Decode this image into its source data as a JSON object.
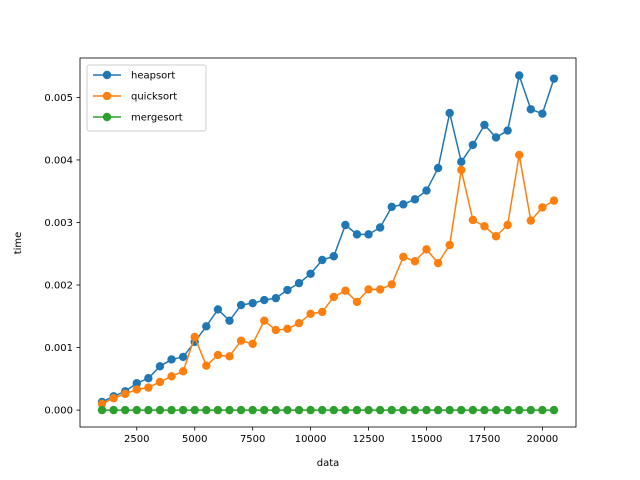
{
  "chart_data": {
    "type": "line",
    "title": "",
    "xlabel": "data",
    "ylabel": "time",
    "xlim": [
      50,
      21450
    ],
    "ylim": [
      -0.00027,
      0.00563
    ],
    "xticks": [
      2500,
      5000,
      7500,
      10000,
      12500,
      15000,
      17500,
      20000
    ],
    "yticks": [
      0.0,
      0.001,
      0.002,
      0.003,
      0.004,
      0.005
    ],
    "ytick_labels": [
      "0.000",
      "0.001",
      "0.002",
      "0.003",
      "0.004",
      "0.005"
    ],
    "grid": false,
    "legend_position": "top-left",
    "x": [
      1000,
      1500,
      2000,
      2500,
      3000,
      3500,
      4000,
      4500,
      5000,
      5500,
      6000,
      6500,
      7000,
      7500,
      8000,
      8500,
      9000,
      9500,
      10000,
      10500,
      11000,
      11500,
      12000,
      12500,
      13000,
      13500,
      14000,
      14500,
      15000,
      15500,
      16000,
      16500,
      17000,
      17500,
      18000,
      18500,
      19000,
      19500,
      20000,
      20500
    ],
    "series": [
      {
        "name": "heapsort",
        "color": "#1f77b4",
        "values": [
          0.00013,
          0.00022,
          0.0003,
          0.00043,
          0.00051,
          0.0007,
          0.00081,
          0.00085,
          0.00109,
          0.00134,
          0.00161,
          0.00143,
          0.00168,
          0.00171,
          0.00176,
          0.00179,
          0.00192,
          0.00203,
          0.00218,
          0.0024,
          0.00246,
          0.00296,
          0.00281,
          0.00281,
          0.00292,
          0.00325,
          0.00329,
          0.00337,
          0.00351,
          0.00387,
          0.00475,
          0.00397,
          0.00424,
          0.00456,
          0.00436,
          0.00447,
          0.00535,
          0.00481,
          0.00474,
          0.0053
        ]
      },
      {
        "name": "quicksort",
        "color": "#ff7f0e",
        "values": [
          0.0001,
          0.00019,
          0.00026,
          0.00033,
          0.00036,
          0.00045,
          0.00054,
          0.00062,
          0.00117,
          0.00071,
          0.00088,
          0.00086,
          0.00111,
          0.00106,
          0.00143,
          0.00128,
          0.0013,
          0.00139,
          0.00154,
          0.00157,
          0.00181,
          0.00191,
          0.00173,
          0.00193,
          0.00193,
          0.00201,
          0.00245,
          0.00238,
          0.00257,
          0.00235,
          0.00264,
          0.00384,
          0.00304,
          0.00294,
          0.00278,
          0.00296,
          0.00408,
          0.00303,
          0.00324,
          0.00335
        ]
      },
      {
        "name": "mergesort",
        "color": "#2ca02c",
        "values": [
          0.0,
          0.0,
          0.0,
          0.0,
          0.0,
          0.0,
          0.0,
          0.0,
          0.0,
          0.0,
          0.0,
          0.0,
          0.0,
          0.0,
          0.0,
          0.0,
          0.0,
          0.0,
          0.0,
          0.0,
          0.0,
          0.0,
          0.0,
          0.0,
          0.0,
          0.0,
          0.0,
          0.0,
          0.0,
          0.0,
          0.0,
          0.0,
          0.0,
          0.0,
          0.0,
          0.0,
          0.0,
          0.0,
          0.0,
          0.0
        ]
      }
    ]
  }
}
